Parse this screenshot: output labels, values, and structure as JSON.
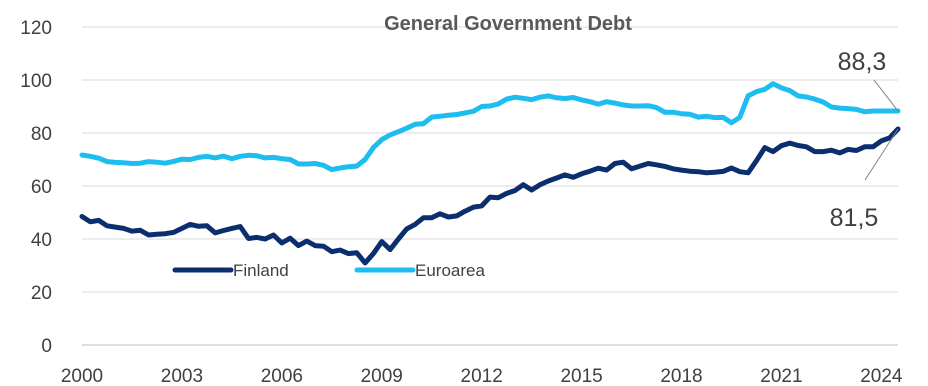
{
  "chart_data": {
    "type": "line",
    "title": "General Government Debt",
    "xlabel": "",
    "ylabel": "",
    "xlim": [
      2000,
      2024.5
    ],
    "ylim": [
      0,
      120
    ],
    "yticks": [
      0,
      20,
      40,
      60,
      80,
      100,
      120
    ],
    "xticks": [
      2000,
      2003,
      2006,
      2009,
      2012,
      2015,
      2018,
      2021,
      2024
    ],
    "grid": "horizontal",
    "legend": "bottom-left inside plot",
    "series": [
      {
        "name": "Finland",
        "color": "#0b2f6e",
        "x": [
          2000.0,
          2000.25,
          2000.5,
          2000.75,
          2001.0,
          2001.25,
          2001.5,
          2001.75,
          2002.0,
          2002.25,
          2002.5,
          2002.75,
          2003.0,
          2003.25,
          2003.5,
          2003.75,
          2004.0,
          2004.25,
          2004.5,
          2004.75,
          2005.0,
          2005.25,
          2005.5,
          2005.75,
          2006.0,
          2006.25,
          2006.5,
          2006.75,
          2007.0,
          2007.25,
          2007.5,
          2007.75,
          2008.0,
          2008.25,
          2008.5,
          2008.75,
          2009.0,
          2009.25,
          2009.5,
          2009.75,
          2010.0,
          2010.25,
          2010.5,
          2010.75,
          2011.0,
          2011.25,
          2011.5,
          2011.75,
          2012.0,
          2012.25,
          2012.5,
          2012.75,
          2013.0,
          2013.25,
          2013.5,
          2013.75,
          2014.0,
          2014.25,
          2014.5,
          2014.75,
          2015.0,
          2015.25,
          2015.5,
          2015.75,
          2016.0,
          2016.25,
          2016.5,
          2016.75,
          2017.0,
          2017.25,
          2017.5,
          2017.75,
          2018.0,
          2018.25,
          2018.5,
          2018.75,
          2019.0,
          2019.25,
          2019.5,
          2019.75,
          2020.0,
          2020.25,
          2020.5,
          2020.75,
          2021.0,
          2021.25,
          2021.5,
          2021.75,
          2022.0,
          2022.25,
          2022.5,
          2022.75,
          2023.0,
          2023.25,
          2023.5,
          2023.75,
          2024.0,
          2024.25,
          2024.5
        ],
        "values": [
          48.5,
          46.5,
          47.0,
          45.0,
          44.5,
          44.0,
          43.0,
          43.3,
          41.5,
          41.8,
          42.0,
          42.5,
          44.0,
          45.5,
          44.8,
          45.0,
          42.3,
          43.2,
          44.0,
          44.7,
          40.2,
          40.6,
          40.0,
          41.5,
          38.5,
          40.3,
          37.5,
          39.2,
          37.5,
          37.3,
          35.2,
          35.8,
          34.5,
          34.8,
          31.0,
          34.5,
          39.0,
          36.0,
          40.0,
          43.8,
          45.5,
          48.0,
          48.0,
          49.5,
          48.3,
          48.7,
          50.5,
          52.0,
          52.5,
          55.8,
          55.6,
          57.2,
          58.3,
          60.5,
          58.5,
          60.5,
          61.9,
          63.0,
          64.2,
          63.3,
          64.6,
          65.6,
          66.7,
          66.0,
          68.5,
          69.0,
          66.5,
          67.5,
          68.5,
          68.0,
          67.4,
          66.5,
          66.0,
          65.6,
          65.4,
          65.0,
          65.2,
          65.5,
          66.8,
          65.4,
          65.0,
          69.5,
          74.5,
          73.0,
          75.2,
          76.2,
          75.3,
          74.8,
          73.0,
          73.0,
          73.5,
          72.5,
          73.8,
          73.4,
          74.8,
          74.8,
          77.0,
          78.2,
          81.5
        ]
      },
      {
        "name": "Euroarea",
        "color": "#1ebdf0",
        "x": [
          2000.0,
          2000.25,
          2000.5,
          2000.75,
          2001.0,
          2001.25,
          2001.5,
          2001.75,
          2002.0,
          2002.25,
          2002.5,
          2002.75,
          2003.0,
          2003.25,
          2003.5,
          2003.75,
          2004.0,
          2004.25,
          2004.5,
          2004.75,
          2005.0,
          2005.25,
          2005.5,
          2005.75,
          2006.0,
          2006.25,
          2006.5,
          2006.75,
          2007.0,
          2007.25,
          2007.5,
          2007.75,
          2008.0,
          2008.25,
          2008.5,
          2008.75,
          2009.0,
          2009.25,
          2009.5,
          2009.75,
          2010.0,
          2010.25,
          2010.5,
          2010.75,
          2011.0,
          2011.25,
          2011.5,
          2011.75,
          2012.0,
          2012.25,
          2012.5,
          2012.75,
          2013.0,
          2013.25,
          2013.5,
          2013.75,
          2014.0,
          2014.25,
          2014.5,
          2014.75,
          2015.0,
          2015.25,
          2015.5,
          2015.75,
          2016.0,
          2016.25,
          2016.5,
          2016.75,
          2017.0,
          2017.25,
          2017.5,
          2017.75,
          2018.0,
          2018.25,
          2018.5,
          2018.75,
          2019.0,
          2019.25,
          2019.5,
          2019.75,
          2020.0,
          2020.25,
          2020.5,
          2020.75,
          2021.0,
          2021.25,
          2021.5,
          2021.75,
          2022.0,
          2022.25,
          2022.5,
          2022.75,
          2023.0,
          2023.25,
          2023.5,
          2023.75,
          2024.0,
          2024.25,
          2024.5
        ],
        "values": [
          71.7,
          71.2,
          70.5,
          69.2,
          68.9,
          68.8,
          68.5,
          68.6,
          69.2,
          69.0,
          68.6,
          69.3,
          70.1,
          70.0,
          70.8,
          71.2,
          70.6,
          71.3,
          70.3,
          71.2,
          71.6,
          71.4,
          70.6,
          70.8,
          70.3,
          70.0,
          68.3,
          68.3,
          68.5,
          67.8,
          66.2,
          66.8,
          67.3,
          67.5,
          70.0,
          74.5,
          77.5,
          79.3,
          80.5,
          81.8,
          83.3,
          83.5,
          86.0,
          86.3,
          86.7,
          87.0,
          87.6,
          88.2,
          90.0,
          90.2,
          91.0,
          92.8,
          93.5,
          93.1,
          92.6,
          93.5,
          94.0,
          93.3,
          93.0,
          93.4,
          92.5,
          91.8,
          90.9,
          91.8,
          91.3,
          90.6,
          90.2,
          90.2,
          90.3,
          89.6,
          87.8,
          87.8,
          87.3,
          87.1,
          86.0,
          86.3,
          85.8,
          85.9,
          83.9,
          85.9,
          94.0,
          95.6,
          96.5,
          98.6,
          97.0,
          96.0,
          94.0,
          93.6,
          92.8,
          91.7,
          89.8,
          89.4,
          89.2,
          88.9,
          88.0,
          88.3,
          88.3,
          88.3,
          88.3
        ]
      }
    ],
    "annotations": [
      {
        "text": "88,3",
        "series": "Euroarea",
        "value": 88.3
      },
      {
        "text": "81,5",
        "series": "Finland",
        "value": 81.5
      }
    ]
  }
}
